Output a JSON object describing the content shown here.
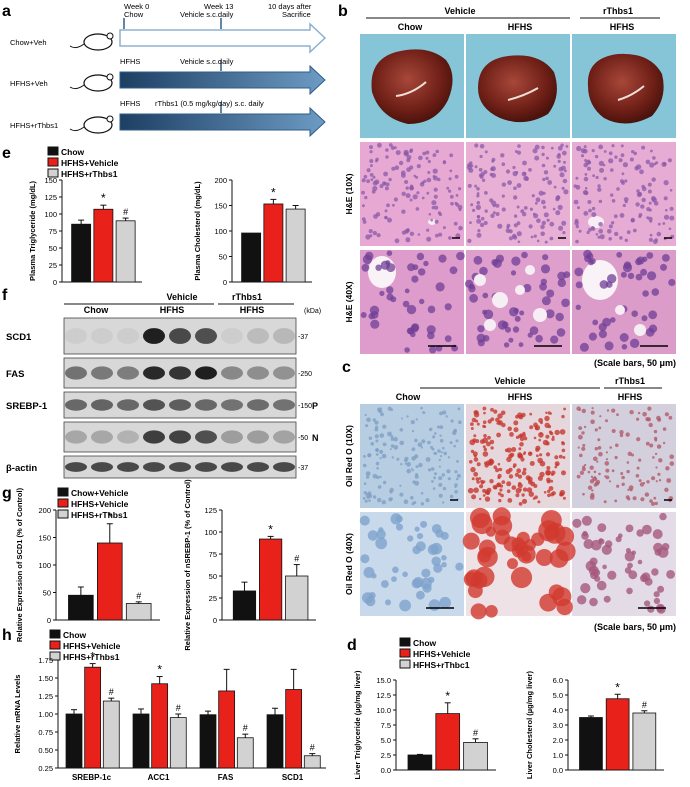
{
  "panels": {
    "a": "a",
    "b": "b",
    "c": "c",
    "d": "d",
    "e": "e",
    "f": "f",
    "g": "g",
    "h": "h"
  },
  "colors": {
    "chow": "#111111",
    "hfhs_vehicle": "#e8221b",
    "hfhs_rthbs1": "#d2d2d2",
    "timeline_arrow": "#2f5d86",
    "chow_arrow": "#a9c4dc",
    "liver_bg": "#86c4d8",
    "he_tissue": "#e2a2cf",
    "oil_red": "#c7372e",
    "oil_blue": "#8aaed1"
  },
  "panel_a": {
    "groups": [
      "Chow+Veh",
      "HFHS+Veh",
      "HFHS+rThbs1"
    ],
    "week0": "Week 0",
    "week0_sub": "Chow",
    "week13": "Week 13",
    "week13_sub": "Vehicle s.c.daily",
    "end": "10 days after",
    "end_sub": "Sacrifice",
    "row2_left": "HFHS",
    "row2_mid": "Vehicle s.c.daily",
    "row3_left": "HFHS",
    "row3_mid": "rThbs1 (0.5 mg/kg/day) s.c. daily"
  },
  "panel_b": {
    "vehicle": "Vehicle",
    "rthbs1": "rThbs1",
    "cols": [
      "Chow",
      "HFHS",
      "HFHS"
    ],
    "row_he10": "H&E (10X)",
    "row_he40": "H&E (40X)",
    "scale": "(Scale bars, 50 μm)"
  },
  "panel_c": {
    "vehicle": "Vehicle",
    "rthbs1": "rThbs1",
    "cols": [
      "Chow",
      "HFHS",
      "HFHS"
    ],
    "row_oil10": "Oil Red O (10X)",
    "row_oil40": "Oil Red O (40X)",
    "scale": "(Scale bars, 50 μm)"
  },
  "panel_f": {
    "vehicle": "Vehicle",
    "rthbs1": "rThbs1",
    "chow": "Chow",
    "hfhs1": "HFHS",
    "hfhs2": "HFHS",
    "kda": "(kDa)",
    "rows": [
      {
        "label": "SCD1",
        "mw": "-37",
        "tag": "",
        "intensity": [
          0.12,
          0.12,
          0.12,
          0.95,
          0.75,
          0.72,
          0.12,
          0.2,
          0.22
        ]
      },
      {
        "label": "FAS",
        "mw": "-250",
        "tag": "",
        "intensity": [
          0.55,
          0.52,
          0.5,
          0.9,
          0.85,
          0.95,
          0.45,
          0.42,
          0.4
        ]
      },
      {
        "label": "SREBP-1",
        "mw": "-150",
        "tag": "P",
        "intensity": [
          0.6,
          0.62,
          0.6,
          0.7,
          0.65,
          0.6,
          0.55,
          0.58,
          0.55
        ]
      },
      {
        "label": "",
        "mw": "-50",
        "tag": "N",
        "intensity": [
          0.3,
          0.3,
          0.25,
          0.8,
          0.78,
          0.72,
          0.35,
          0.35,
          0.32
        ]
      },
      {
        "label": "β-actin",
        "mw": "-37",
        "tag": "",
        "intensity": [
          0.75,
          0.75,
          0.75,
          0.75,
          0.75,
          0.75,
          0.75,
          0.75,
          0.75
        ]
      }
    ]
  },
  "legend": {
    "chow": "Chow",
    "hfhs_vehicle": "HFHS+Vehicle",
    "hfhs_rthbs1": "HFHS+rThbs1",
    "hfhs_vehicle_h": "HFHS+Vehicle",
    "hfhs_rthbs1_h": "HFHS+rThbs1",
    "chow_vehicle": "Chow+Vehicle",
    "hfhs_vehicle_d": "HFHS+Vehicle",
    "hfhs_rthbs1_d": "HFHS+rThbc1"
  },
  "chart_data": [
    {
      "id": "e1",
      "type": "bar",
      "ylabel": "Plasma Triglyceride (mg/dL)",
      "ylim": [
        0,
        150
      ],
      "yticks": [
        "0",
        "25",
        "50",
        "75",
        "100",
        "125",
        "150"
      ],
      "values": [
        85,
        107,
        90
      ],
      "errors": [
        6,
        6,
        4
      ],
      "marks": [
        "",
        "*",
        "#"
      ]
    },
    {
      "id": "e2",
      "type": "bar",
      "ylabel": "Plasma Cholesterol (mg/dL)",
      "ylim": [
        0,
        200
      ],
      "yticks": [
        "0",
        "50",
        "100",
        "150",
        "200"
      ],
      "values": [
        96,
        153,
        143
      ],
      "errors": [
        0,
        9,
        7
      ],
      "marks": [
        "",
        "*",
        ""
      ]
    },
    {
      "id": "g1",
      "type": "bar",
      "ylabel": "Relative Expression of SCD1 (% of Control)",
      "ylim": [
        0,
        200
      ],
      "yticks": [
        "0",
        "50",
        "100",
        "150",
        "200"
      ],
      "values": [
        45,
        140,
        30
      ],
      "errors": [
        15,
        35,
        3
      ],
      "marks": [
        "",
        "*",
        "#"
      ]
    },
    {
      "id": "g2",
      "type": "bar",
      "ylabel": "Relative Expression of nSREBP-1 (% of Control)",
      "ylim": [
        0,
        125
      ],
      "yticks": [
        "0",
        "25",
        "50",
        "75",
        "100",
        "125"
      ],
      "values": [
        33,
        92,
        50
      ],
      "errors": [
        10,
        3,
        13
      ],
      "marks": [
        "",
        "*",
        "#"
      ]
    },
    {
      "id": "h",
      "type": "bar",
      "ylabel": "Relative mRNA Levels",
      "ylim": [
        0.25,
        1.75
      ],
      "yticks": [
        "0.25",
        "0.50",
        "0.75",
        "1.00",
        "1.25",
        "1.50",
        "1.75"
      ],
      "categories": [
        "SREBP-1c",
        "ACC1",
        "FAS",
        "SCD1"
      ],
      "series": [
        {
          "name": "Chow",
          "values": [
            1.0,
            1.0,
            0.99,
            0.99
          ],
          "errors": [
            0.06,
            0.07,
            0.05,
            0.09
          ]
        },
        {
          "name": "HFHS+Vehicle",
          "values": [
            1.65,
            1.42,
            1.32,
            1.34
          ],
          "errors": [
            0.05,
            0.1,
            0.3,
            0.28
          ]
        },
        {
          "name": "HFHS+rThbs1",
          "values": [
            1.18,
            0.95,
            0.67,
            0.42
          ],
          "errors": [
            0.04,
            0.05,
            0.05,
            0.03
          ]
        }
      ],
      "marks": [
        [
          "",
          "*",
          "#"
        ],
        [
          "",
          "*",
          "#"
        ],
        [
          "",
          "",
          "#"
        ],
        [
          "",
          "",
          "#"
        ]
      ]
    },
    {
      "id": "d1",
      "type": "bar",
      "ylabel": "Liver Triglyceride (µg/mg liver)",
      "ylim": [
        0,
        15
      ],
      "yticks": [
        "0.0",
        "2.5",
        "5.0",
        "7.5",
        "10.0",
        "12.5",
        "15.0"
      ],
      "values": [
        2.5,
        9.4,
        4.6
      ],
      "errors": [
        0.1,
        1.8,
        0.6
      ],
      "marks": [
        "",
        "*",
        "#"
      ]
    },
    {
      "id": "d2",
      "type": "bar",
      "ylabel": "Liver Cholesterol (µg/mg liver)",
      "ylim": [
        0,
        6
      ],
      "yticks": [
        "0.0",
        "1.0",
        "2.0",
        "3.0",
        "4.0",
        "5.0",
        "6.0"
      ],
      "values": [
        3.5,
        4.75,
        3.8
      ],
      "errors": [
        0.1,
        0.3,
        0.15
      ],
      "marks": [
        "",
        "*",
        "#"
      ]
    }
  ]
}
